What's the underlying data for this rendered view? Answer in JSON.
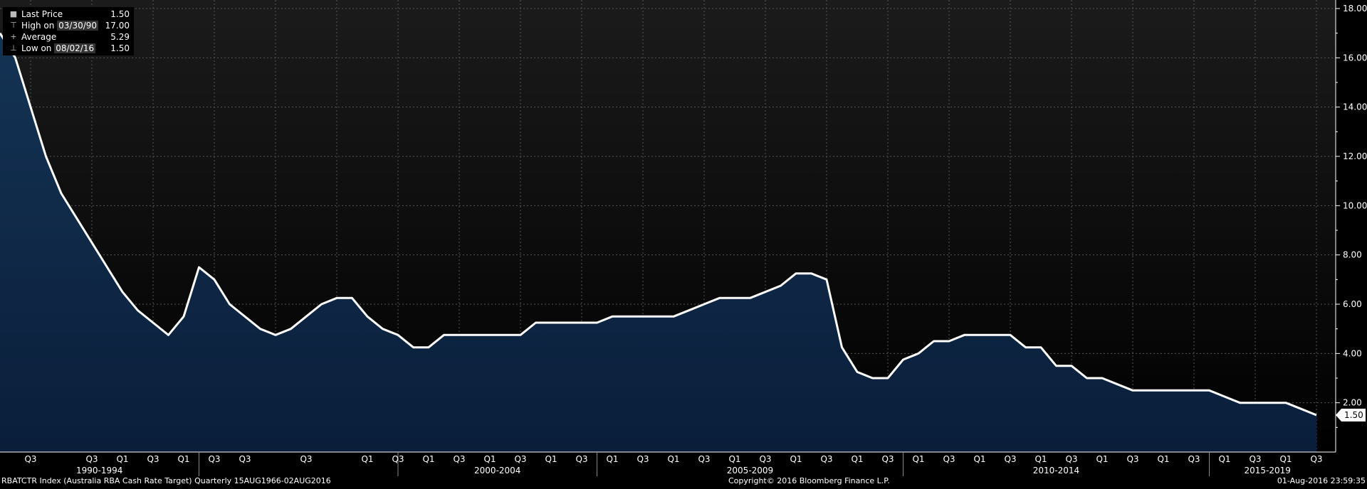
{
  "legend": {
    "items": [
      {
        "label": "Last Price",
        "date": "",
        "value": "1.50",
        "symbol": "■"
      },
      {
        "label": "High on ",
        "date": "03/30/90",
        "value": "17.00",
        "symbol": "⊤"
      },
      {
        "label": "Average",
        "date": "",
        "value": "5.29",
        "symbol": "+"
      },
      {
        "label": "Low on ",
        "date": "08/02/16",
        "value": "1.50",
        "symbol": "⊥"
      }
    ]
  },
  "footer": {
    "left": "RBATCTR Index (Australia RBA Cash Rate Target)  Quarterly 15AUG1966-02AUG2016",
    "center": "Copyright© 2016 Bloomberg Finance L.P.",
    "right": "01-Aug-2016 23:59:35"
  },
  "colors": {
    "background_top": "#1b1b1b",
    "background_bottom": "#000000",
    "area_top": "#143354",
    "area_bottom": "#0a1e3a",
    "line": "#ffffff",
    "grid": "#555555"
  },
  "chart_data": {
    "type": "area",
    "y_axis_side": "right",
    "ylim": [
      0,
      18
    ],
    "yticks": [
      "2.00",
      "4.00",
      "6.00",
      "8.00",
      "10.00",
      "12.00",
      "14.00",
      "16.00",
      "18.00"
    ],
    "last_value_label": "1.50",
    "grid": true,
    "x_quarter_labels": [
      {
        "q": 1,
        "label": "Q3"
      },
      {
        "q": 3,
        "label": "Q3"
      },
      {
        "q": 4,
        "label": "Q1"
      },
      {
        "q": 5,
        "label": "Q3"
      },
      {
        "q": 6,
        "label": "Q1"
      },
      {
        "q": 7,
        "label": "Q3"
      },
      {
        "q": 8,
        "label": "Q3"
      },
      {
        "q": 10,
        "label": "Q3"
      },
      {
        "q": 12,
        "label": "Q1"
      },
      {
        "q": 13,
        "label": "Q3"
      },
      {
        "q": 14,
        "label": "Q1"
      },
      {
        "q": 15,
        "label": "Q3"
      },
      {
        "q": 16,
        "label": "Q1"
      },
      {
        "q": 17,
        "label": "Q3"
      },
      {
        "q": 18,
        "label": "Q1"
      },
      {
        "q": 19,
        "label": "Q3"
      },
      {
        "q": 20,
        "label": "Q1"
      },
      {
        "q": 21,
        "label": "Q3"
      },
      {
        "q": 22,
        "label": "Q1"
      },
      {
        "q": 23,
        "label": "Q3"
      },
      {
        "q": 24,
        "label": "Q1"
      },
      {
        "q": 25,
        "label": "Q3"
      },
      {
        "q": 26,
        "label": "Q1"
      },
      {
        "q": 27,
        "label": "Q3"
      },
      {
        "q": 28,
        "label": "Q1"
      },
      {
        "q": 29,
        "label": "Q3"
      },
      {
        "q": 30,
        "label": "Q1"
      },
      {
        "q": 31,
        "label": "Q3"
      },
      {
        "q": 32,
        "label": "Q1"
      },
      {
        "q": 33,
        "label": "Q3"
      },
      {
        "q": 34,
        "label": "Q1"
      },
      {
        "q": 35,
        "label": "Q3"
      },
      {
        "q": 36,
        "label": "Q1"
      },
      {
        "q": 37,
        "label": "Q3"
      },
      {
        "q": 38,
        "label": "Q1"
      },
      {
        "q": 39,
        "label": "Q3"
      },
      {
        "q": 40,
        "label": "Q1"
      },
      {
        "q": 41,
        "label": "Q3"
      },
      {
        "q": 42,
        "label": "Q1"
      },
      {
        "q": 43,
        "label": "Q3"
      }
    ],
    "x_period_labels": [
      {
        "label": "1990-1994",
        "q_start": 0,
        "q_end": 6.5
      },
      {
        "label": "2000-2004",
        "q_start": 13,
        "q_end": 19.5
      },
      {
        "label": "2005-2009",
        "q_start": 19.5,
        "q_end": 29.5
      },
      {
        "label": "2010-2014",
        "q_start": 29.5,
        "q_end": 39.5
      },
      {
        "label": "2015-2019",
        "q_start": 39.5,
        "q_end": 43.3
      }
    ],
    "x_period_separators": [
      6.5,
      13,
      19.5,
      29.5,
      39.5
    ],
    "points": [
      [
        0,
        17.0
      ],
      [
        0.5,
        16.0
      ],
      [
        1,
        14.0
      ],
      [
        1.5,
        12.0
      ],
      [
        2,
        10.5
      ],
      [
        2.5,
        9.5
      ],
      [
        3,
        8.5
      ],
      [
        3.5,
        7.5
      ],
      [
        4,
        6.5
      ],
      [
        4.5,
        5.75
      ],
      [
        5,
        5.25
      ],
      [
        5.5,
        4.75
      ],
      [
        6,
        5.5
      ],
      [
        6.5,
        7.5
      ],
      [
        7,
        7.0
      ],
      [
        7.5,
        6.0
      ],
      [
        8,
        5.5
      ],
      [
        8.5,
        5.0
      ],
      [
        9,
        4.75
      ],
      [
        9.5,
        5.0
      ],
      [
        10,
        5.5
      ],
      [
        10.5,
        6.0
      ],
      [
        11,
        6.25
      ],
      [
        11.5,
        6.25
      ],
      [
        12,
        5.5
      ],
      [
        12.5,
        5.0
      ],
      [
        13,
        4.75
      ],
      [
        13.5,
        4.25
      ],
      [
        14,
        4.25
      ],
      [
        14.5,
        4.75
      ],
      [
        15,
        4.75
      ],
      [
        15.5,
        4.75
      ],
      [
        16,
        4.75
      ],
      [
        16.5,
        4.75
      ],
      [
        17,
        4.75
      ],
      [
        17.5,
        5.25
      ],
      [
        18,
        5.25
      ],
      [
        18.5,
        5.25
      ],
      [
        19,
        5.25
      ],
      [
        19.5,
        5.25
      ],
      [
        20,
        5.5
      ],
      [
        20.5,
        5.5
      ],
      [
        21,
        5.5
      ],
      [
        21.5,
        5.5
      ],
      [
        22,
        5.5
      ],
      [
        22.5,
        5.75
      ],
      [
        23,
        6.0
      ],
      [
        23.5,
        6.25
      ],
      [
        24,
        6.25
      ],
      [
        24.5,
        6.25
      ],
      [
        25,
        6.5
      ],
      [
        25.5,
        6.75
      ],
      [
        26,
        7.25
      ],
      [
        26.5,
        7.25
      ],
      [
        27,
        7.0
      ],
      [
        27.5,
        4.25
      ],
      [
        28,
        3.25
      ],
      [
        28.5,
        3.0
      ],
      [
        29,
        3.0
      ],
      [
        29.5,
        3.75
      ],
      [
        30,
        4.0
      ],
      [
        30.5,
        4.5
      ],
      [
        31,
        4.5
      ],
      [
        31.5,
        4.75
      ],
      [
        32,
        4.75
      ],
      [
        32.5,
        4.75
      ],
      [
        33,
        4.75
      ],
      [
        33.5,
        4.25
      ],
      [
        34,
        4.25
      ],
      [
        34.5,
        3.5
      ],
      [
        35,
        3.5
      ],
      [
        35.5,
        3.0
      ],
      [
        36,
        3.0
      ],
      [
        36.5,
        2.75
      ],
      [
        37,
        2.5
      ],
      [
        37.5,
        2.5
      ],
      [
        38,
        2.5
      ],
      [
        38.5,
        2.5
      ],
      [
        39,
        2.5
      ],
      [
        39.5,
        2.5
      ],
      [
        40,
        2.25
      ],
      [
        40.5,
        2.0
      ],
      [
        41,
        2.0
      ],
      [
        41.5,
        2.0
      ],
      [
        42,
        2.0
      ],
      [
        42.5,
        1.75
      ],
      [
        43,
        1.5
      ]
    ]
  }
}
